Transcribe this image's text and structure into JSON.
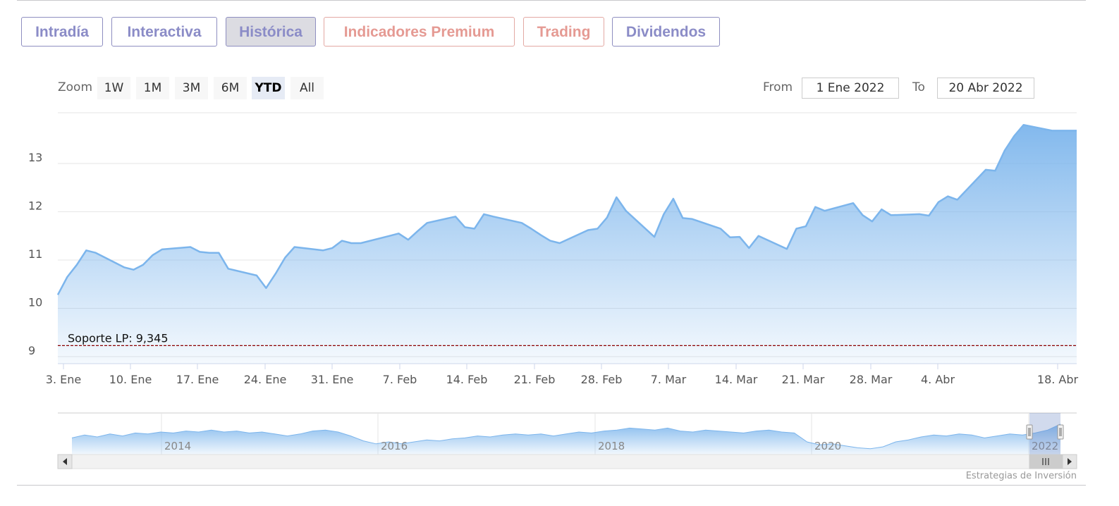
{
  "tabs": [
    {
      "label": "Intradía",
      "style": "normal"
    },
    {
      "label": "Interactiva",
      "style": "normal"
    },
    {
      "label": "Histórica",
      "style": "active"
    },
    {
      "label": "Indicadores Premium",
      "style": "premium"
    },
    {
      "label": "Trading",
      "style": "premium"
    },
    {
      "label": "Dividendos",
      "style": "normal"
    }
  ],
  "range_selector": {
    "zoom_label": "Zoom",
    "buttons": [
      "1W",
      "1M",
      "3M",
      "6M",
      "YTD",
      "All"
    ],
    "selected": "YTD",
    "from_label": "From",
    "from_value": "1 Ene 2022",
    "to_label": "To",
    "to_value": "20 Abr 2022"
  },
  "credit": "Estrategias de Inversión",
  "colors": {
    "series_line": "#7cb5ec",
    "area_top": "#7cb5ec",
    "support_line": "#8b0000",
    "tab_text": "#8b8cc7",
    "tab_premium_text": "#e59a93"
  },
  "chart_data": {
    "type": "area",
    "title": "",
    "xlabel": "",
    "ylabel": "",
    "ylim": [
      8.85,
      13.9
    ],
    "y_ticks": [
      9,
      10,
      11,
      12,
      13
    ],
    "x_tick_labels": [
      "3. Ene",
      "10. Ene",
      "17. Ene",
      "24. Ene",
      "31. Ene",
      "7. Feb",
      "14. Feb",
      "21. Feb",
      "28. Feb",
      "7. Mar",
      "14. Mar",
      "21. Mar",
      "28. Mar",
      "4. Abr",
      "18. Abr"
    ],
    "grid": true,
    "series": [
      {
        "values": [
          10.28,
          10.65,
          10.9,
          11.2,
          11.15,
          10.85,
          10.8,
          10.9,
          11.1,
          11.22,
          11.27,
          11.17,
          11.15,
          11.15,
          10.82,
          10.68,
          10.42,
          10.72,
          11.05,
          11.27,
          11.2,
          11.25,
          11.4,
          11.35,
          11.35,
          11.5,
          11.55,
          11.42,
          11.6,
          11.77,
          11.9,
          11.68,
          11.65,
          11.95,
          11.9,
          11.77,
          11.65,
          11.52,
          11.4,
          11.35,
          11.62,
          11.65,
          11.88,
          12.3,
          12.02,
          11.48,
          11.95,
          12.27,
          11.87,
          11.85,
          11.65,
          11.47,
          11.48,
          11.25,
          11.5,
          11.23,
          11.65,
          11.7,
          12.1,
          12.02,
          12.18,
          11.93,
          11.8,
          12.05,
          11.93,
          11.95,
          11.92,
          12.2,
          12.32,
          12.25,
          12.87,
          12.85,
          13.27,
          13.57,
          13.8,
          13.68,
          13.68
        ]
      }
    ],
    "support_line": {
      "label": "Soporte LP: 9,345",
      "value": 9.345
    },
    "navigator": {
      "year_labels": [
        "2014",
        "2016",
        "2018",
        "2020",
        "2022"
      ],
      "values": [
        12.6,
        12.9,
        12.7,
        13.0,
        12.8,
        13.1,
        13.0,
        13.2,
        13.1,
        13.3,
        13.2,
        13.4,
        13.2,
        13.3,
        13.1,
        13.2,
        13.0,
        12.8,
        13.0,
        13.3,
        13.4,
        13.2,
        12.8,
        12.3,
        12.0,
        12.2,
        12.0,
        12.2,
        12.4,
        12.3,
        12.5,
        12.6,
        12.8,
        12.7,
        12.9,
        13.0,
        12.9,
        13.0,
        12.8,
        13.0,
        13.2,
        13.1,
        13.3,
        13.4,
        13.6,
        13.5,
        13.4,
        13.6,
        13.3,
        13.2,
        13.4,
        13.3,
        13.2,
        13.1,
        13.3,
        13.4,
        13.2,
        13.1,
        12.2,
        11.9,
        12.0,
        11.8,
        11.6,
        11.5,
        11.7,
        12.2,
        12.4,
        12.7,
        12.9,
        12.8,
        13.0,
        12.9,
        12.6,
        12.8,
        13.0,
        12.9,
        13.1,
        13.4,
        14.0
      ]
    }
  }
}
